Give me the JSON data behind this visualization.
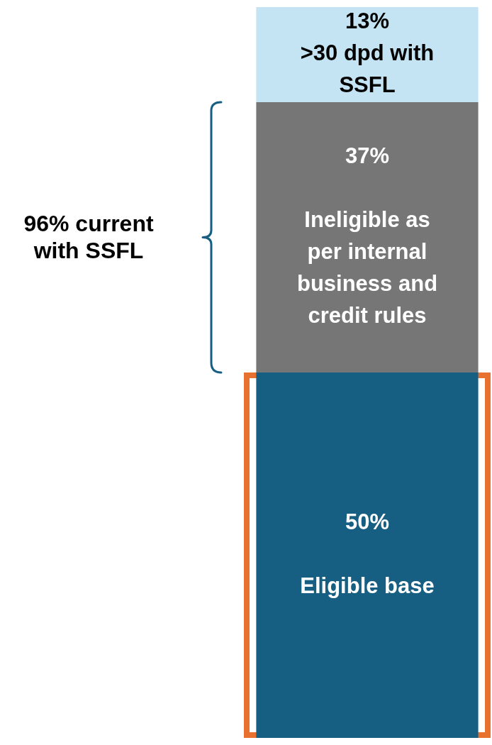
{
  "chart_data": {
    "type": "bar",
    "stacked": true,
    "categories": [
      null
    ],
    "series": [
      {
        "name": "Eligible base",
        "color": "#175f82",
        "values": [
          50
        ],
        "value_labels": [
          "50%"
        ]
      },
      {
        "name": "Ineligible as per internal business and credit rules",
        "color": "#767676",
        "values": [
          37
        ],
        "value_labels": [
          "37%"
        ]
      },
      {
        "name": ">30 dpd with SSFL",
        "color": "#c5e4f3",
        "values": [
          13
        ],
        "value_labels": [
          "13%"
        ]
      }
    ],
    "ylim": [
      0,
      100
    ],
    "tick_labels": false,
    "legend": false,
    "bands": [
      {
        "axis": "y",
        "from": 0,
        "to": 50,
        "color": "#e8712f"
      }
    ],
    "annotations": [
      "96% current with SSFL"
    ]
  }
}
